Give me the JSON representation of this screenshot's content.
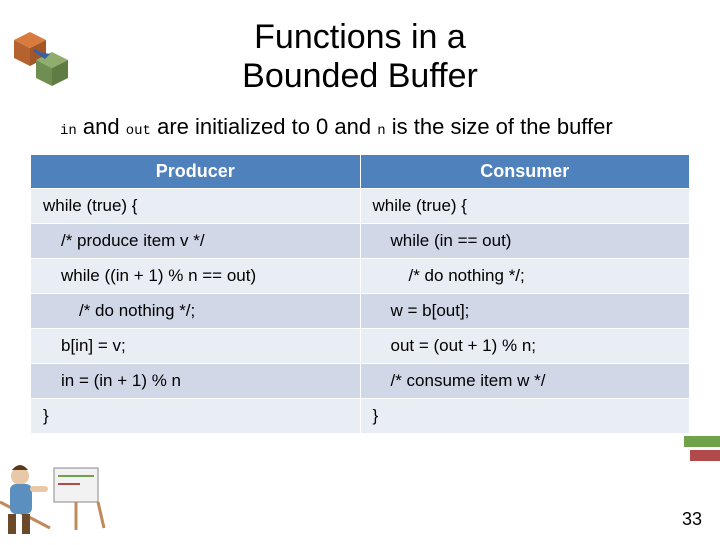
{
  "title_line1": "Functions  in a",
  "title_line2": "Bounded Buffer",
  "subtitle_parts": {
    "p1": "in",
    "p2": " and ",
    "p3": "out",
    "p4": " are initialized to 0 and ",
    "p5": "n",
    "p6": " is the size of the buffer"
  },
  "table": {
    "header_bg": "#4f81bd",
    "header_fg": "#ffffff",
    "row_bg_alt1": "#e9edf4",
    "row_bg_alt2": "#d0d8e8",
    "columns": [
      "Producer",
      "Consumer"
    ],
    "rows": [
      {
        "left": {
          "text": "while (true) {",
          "indent": 0
        },
        "right": {
          "text": "while (true) {",
          "indent": 0
        }
      },
      {
        "left": {
          "text": "/* produce item v */",
          "indent": 1
        },
        "right": {
          "text": "while (in == out)",
          "indent": 1
        }
      },
      {
        "left": {
          "text": "while ((in + 1) % n == out)",
          "indent": 1
        },
        "right": {
          "text": "/* do nothing */;",
          "indent": 2
        }
      },
      {
        "left": {
          "text": "/* do nothing */;",
          "indent": 2
        },
        "right": {
          "text": "w = b[out];",
          "indent": 1
        }
      },
      {
        "left": {
          "text": "b[in] = v;",
          "indent": 1
        },
        "right": {
          "text": "out = (out + 1) % n;",
          "indent": 1
        }
      },
      {
        "left": {
          "text": "in = (in + 1) % n",
          "indent": 1
        },
        "right": {
          "text": "/* consume item w */",
          "indent": 1
        }
      },
      {
        "left": {
          "text": "}",
          "indent": 0
        },
        "right": {
          "text": "}",
          "indent": 0
        }
      }
    ]
  },
  "slide_number": "33",
  "decor": {
    "tl_box1": "#d97b3f",
    "tl_box2": "#8fae6d",
    "tl_arrow": "#3a5fa8",
    "r_bar1": "#6fa24a",
    "r_bar2": "#b14a4a",
    "bl_shirt": "#5a8fbf",
    "bl_skin": "#e8c8a6",
    "bl_easel": "#c08a5a"
  }
}
